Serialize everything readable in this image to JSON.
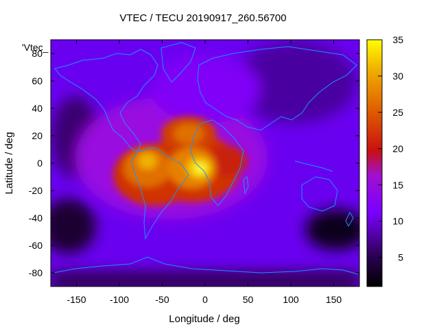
{
  "chart_data": {
    "type": "heatmap",
    "title": "VTEC / TECU 20190917_260.56700",
    "xlabel": "Longitude / deg",
    "ylabel": "Latitude / deg",
    "legend_label": "'Vtec_",
    "xlim": [
      -180,
      180
    ],
    "ylim": [
      -90,
      90
    ],
    "x_ticks": [
      -150,
      -100,
      -50,
      0,
      50,
      100,
      150
    ],
    "y_ticks": [
      -80,
      -60,
      -40,
      -20,
      0,
      20,
      40,
      60,
      80
    ],
    "colorbar": {
      "range": [
        1,
        35
      ],
      "ticks": [
        5,
        10,
        15,
        20,
        25,
        30,
        35
      ],
      "palette": "gnuplot black-purple-red-yellow"
    },
    "overlay": "coastlines",
    "features": [
      {
        "lon": -65,
        "lat": -3,
        "value": 24
      },
      {
        "lon": -8,
        "lat": -8,
        "value": 33
      },
      {
        "lon": -15,
        "lat": 22,
        "value": 25
      }
    ]
  },
  "colors": {
    "coastline": "#1e90ff",
    "frame": "#000000"
  }
}
